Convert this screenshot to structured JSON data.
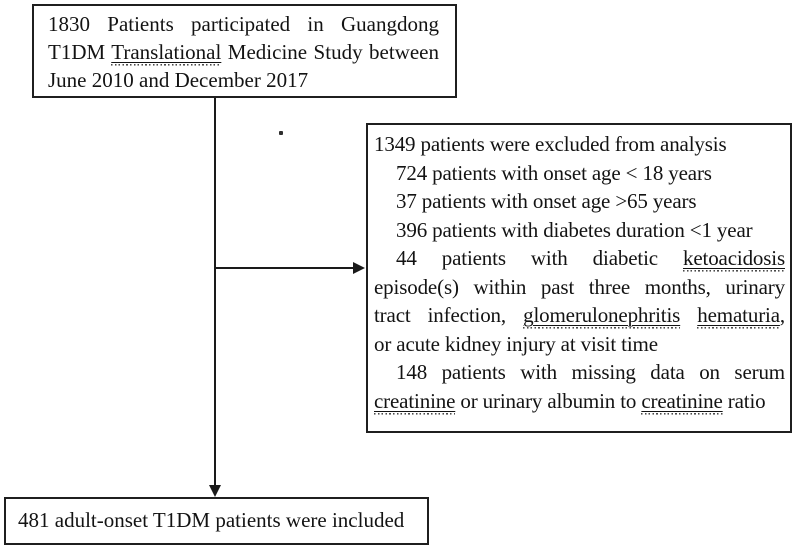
{
  "colors": {
    "background": "#ffffff",
    "text": "#131313",
    "border": "#1f1f1f",
    "arrow": "#1a1a1a"
  },
  "enrollment_box": {
    "lines": [
      {
        "justify": true,
        "indent": false,
        "segments": [
          {
            "t": "1830 Patients participated in Guangdong"
          }
        ]
      },
      {
        "justify": true,
        "indent": false,
        "segments": [
          {
            "t": "T1DM "
          },
          {
            "t": "Translational",
            "u": true
          },
          {
            "t": " Medicine Study between"
          }
        ]
      },
      {
        "justify": false,
        "indent": false,
        "segments": [
          {
            "t": "June 2010 and December 2017"
          }
        ]
      }
    ]
  },
  "exclusion_box": {
    "lines": [
      {
        "justify": false,
        "indent": false,
        "segments": [
          {
            "t": "1349 patients were excluded from analysis"
          }
        ]
      },
      {
        "justify": false,
        "indent": true,
        "segments": [
          {
            "t": "724 patients with onset age < 18 years"
          }
        ]
      },
      {
        "justify": false,
        "indent": true,
        "segments": [
          {
            "t": "37 patients with onset age >65 years"
          }
        ]
      },
      {
        "justify": false,
        "indent": true,
        "segments": [
          {
            "t": "396 patients with diabetes duration <1 year"
          }
        ]
      },
      {
        "justify": true,
        "indent": true,
        "segments": [
          {
            "t": "44 patients with diabetic "
          },
          {
            "t": "ketoacidosis",
            "u": true
          }
        ]
      },
      {
        "justify": true,
        "indent": false,
        "segments": [
          {
            "t": "episode(s) within past three months, urinary"
          }
        ]
      },
      {
        "justify": true,
        "indent": false,
        "segments": [
          {
            "t": "tract infection, "
          },
          {
            "t": "glomerulonephritis",
            "u": true
          },
          {
            "t": " "
          },
          {
            "t": "hematuria",
            "u": true
          },
          {
            "t": ","
          }
        ]
      },
      {
        "justify": false,
        "indent": false,
        "segments": [
          {
            "t": "or acute kidney injury at visit time"
          }
        ]
      },
      {
        "justify": true,
        "indent": true,
        "segments": [
          {
            "t": "148 patients with missing data on serum"
          }
        ]
      },
      {
        "justify": false,
        "indent": false,
        "segments": [
          {
            "t": "creatinine",
            "u": true
          },
          {
            "t": " or urinary albumin to "
          },
          {
            "t": "creatinine",
            "u": true
          },
          {
            "t": " ratio"
          }
        ]
      }
    ]
  },
  "inclusion_box": {
    "lines": [
      {
        "justify": false,
        "indent": false,
        "segments": [
          {
            "t": "481 adult-onset T1DM patients were included"
          }
        ]
      }
    ]
  },
  "flow": {
    "main_arrow": {
      "from": "enrollment-box",
      "to": "inclusion-box",
      "direction": "down"
    },
    "branch_arrow": {
      "from": "main-flow-line",
      "to": "exclusion-box",
      "direction": "right"
    }
  }
}
